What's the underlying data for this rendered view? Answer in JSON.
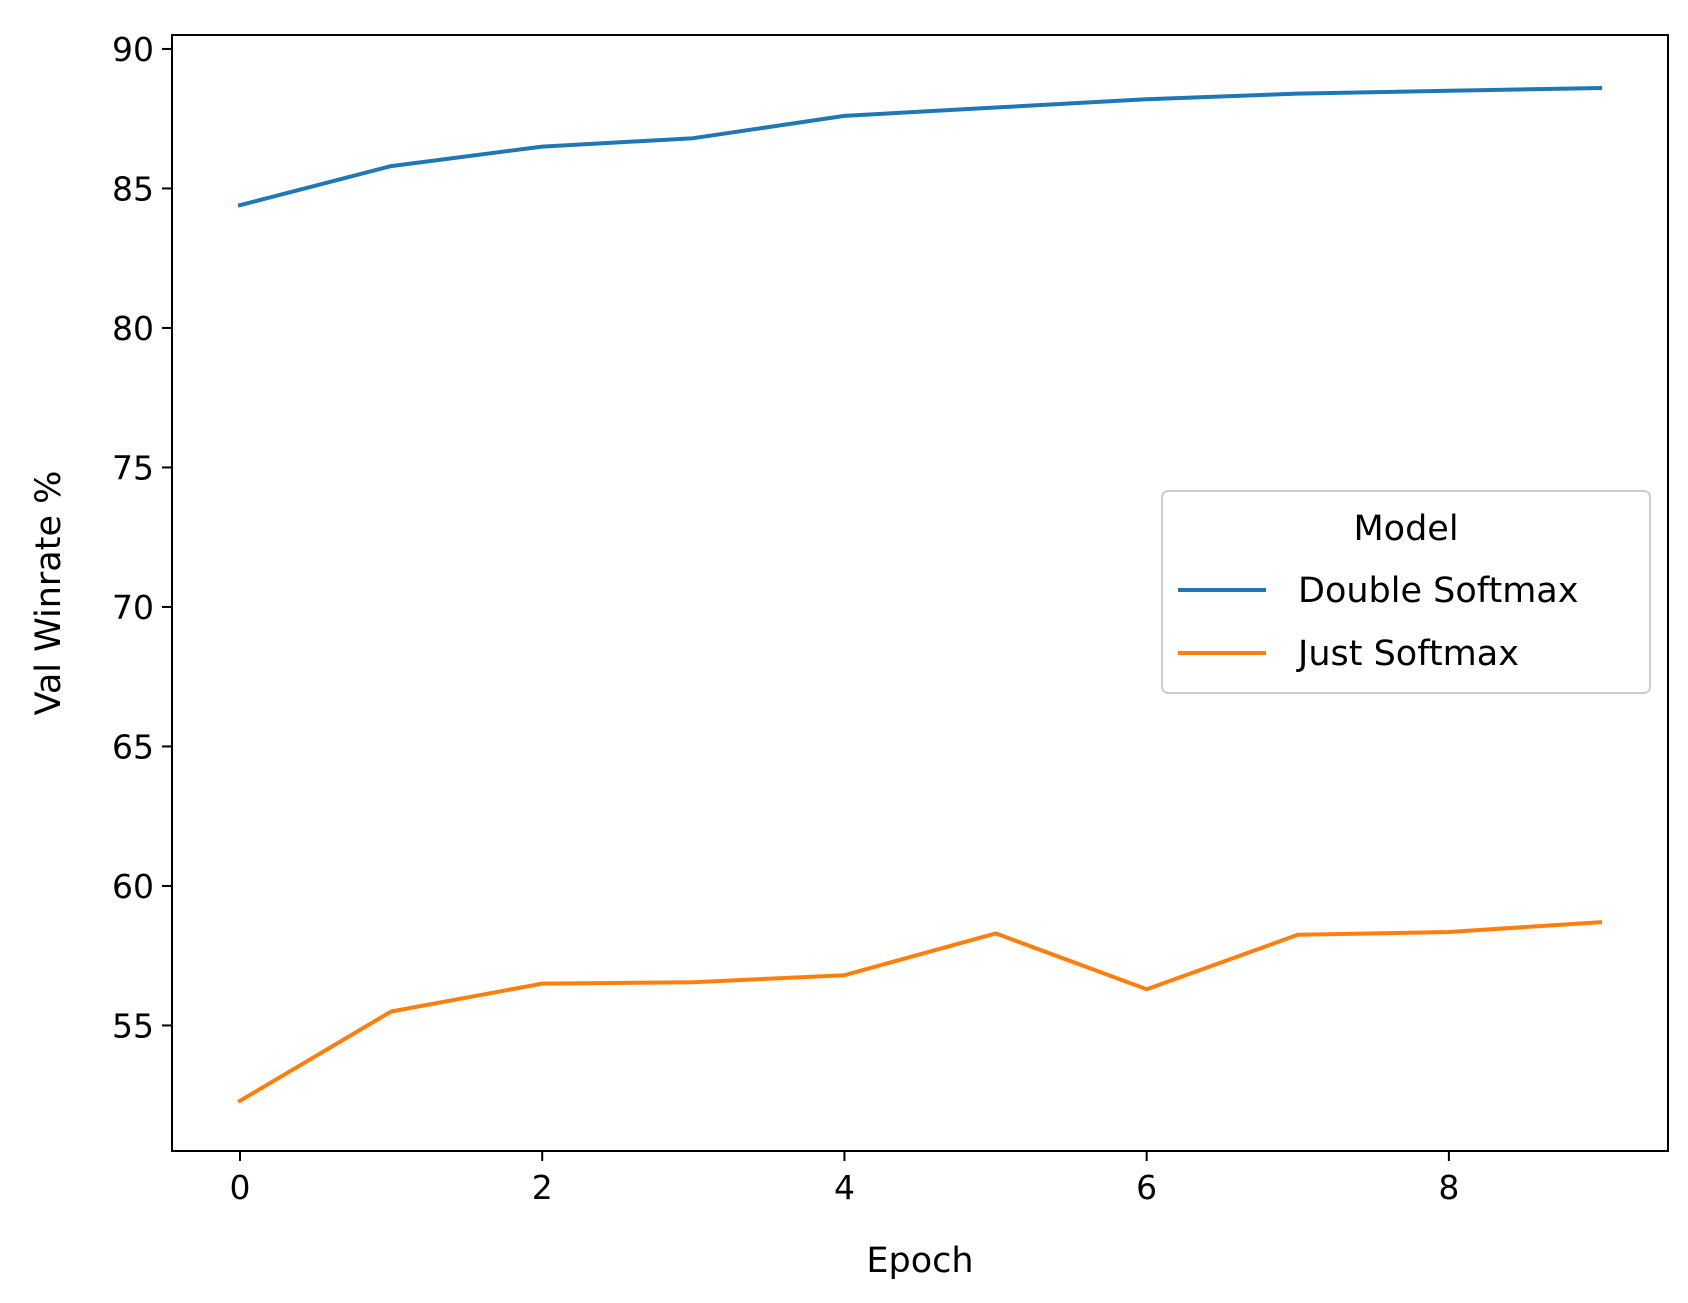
{
  "chart_data": {
    "type": "line",
    "title": "",
    "xlabel": "Epoch",
    "ylabel": "Val Winrate %",
    "x": [
      0,
      1,
      2,
      3,
      4,
      5,
      6,
      7,
      8,
      9
    ],
    "xlim": [
      -0.45,
      9.45
    ],
    "ylim": [
      50.5,
      90.5
    ],
    "xticks": [
      0,
      2,
      4,
      6,
      8
    ],
    "yticks": [
      55,
      60,
      65,
      70,
      75,
      80,
      85,
      90
    ],
    "grid": false,
    "legend": {
      "title": "Model",
      "placement": "center-right"
    },
    "series": [
      {
        "name": "Double Softmax",
        "color": "#1f77b4",
        "values": [
          84.4,
          85.8,
          86.5,
          86.8,
          87.6,
          87.9,
          88.2,
          88.4,
          88.5,
          88.6
        ]
      },
      {
        "name": "Just Softmax",
        "color": "#ff7f0e",
        "values": [
          52.3,
          55.5,
          56.5,
          56.55,
          56.8,
          58.3,
          56.3,
          58.25,
          58.35,
          58.7
        ]
      }
    ]
  }
}
